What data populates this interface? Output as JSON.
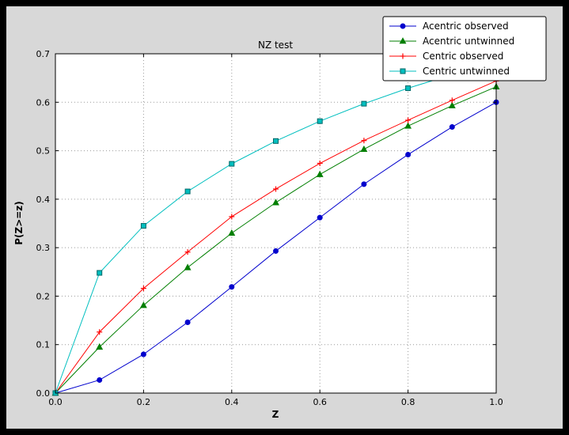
{
  "page": {
    "background": "#000000",
    "figure_background": "#d8d8d8",
    "plot_background": "#ffffff"
  },
  "chart_data": {
    "type": "line",
    "title": "NZ test",
    "xlabel": "Z",
    "ylabel": "P(Z>=z)",
    "xlim": [
      0.0,
      1.0
    ],
    "ylim": [
      0.0,
      0.7
    ],
    "xticks": [
      0.0,
      0.2,
      0.4,
      0.6,
      0.8,
      1.0
    ],
    "yticks": [
      0.0,
      0.1,
      0.2,
      0.3,
      0.4,
      0.5,
      0.6,
      0.7
    ],
    "grid": true,
    "grid_style": "dotted",
    "legend_position": "upper right",
    "x": [
      0.0,
      0.1,
      0.2,
      0.3,
      0.4,
      0.5,
      0.6,
      0.7,
      0.8,
      0.9,
      1.0
    ],
    "series": [
      {
        "name": "Acentric observed",
        "color": "#0000cd",
        "marker": "circle",
        "values": [
          0.0,
          0.027,
          0.08,
          0.146,
          0.219,
          0.293,
          0.362,
          0.431,
          0.492,
          0.549,
          0.6
        ]
      },
      {
        "name": "Acentric untwinned",
        "color": "#007f00",
        "marker": "triangle",
        "values": [
          0.0,
          0.095,
          0.181,
          0.259,
          0.33,
          0.393,
          0.451,
          0.503,
          0.551,
          0.593,
          0.632
        ]
      },
      {
        "name": "Centric observed",
        "color": "#ff0000",
        "marker": "plus",
        "values": [
          0.0,
          0.126,
          0.216,
          0.291,
          0.364,
          0.421,
          0.474,
          0.521,
          0.563,
          0.604,
          0.644
        ]
      },
      {
        "name": "Centric untwinned",
        "color": "#00bfbf",
        "marker": "square",
        "marker_edge": "#006666",
        "values": [
          0.0,
          0.248,
          0.345,
          0.416,
          0.473,
          0.52,
          0.561,
          0.597,
          0.629,
          0.657,
          0.683
        ]
      }
    ]
  }
}
